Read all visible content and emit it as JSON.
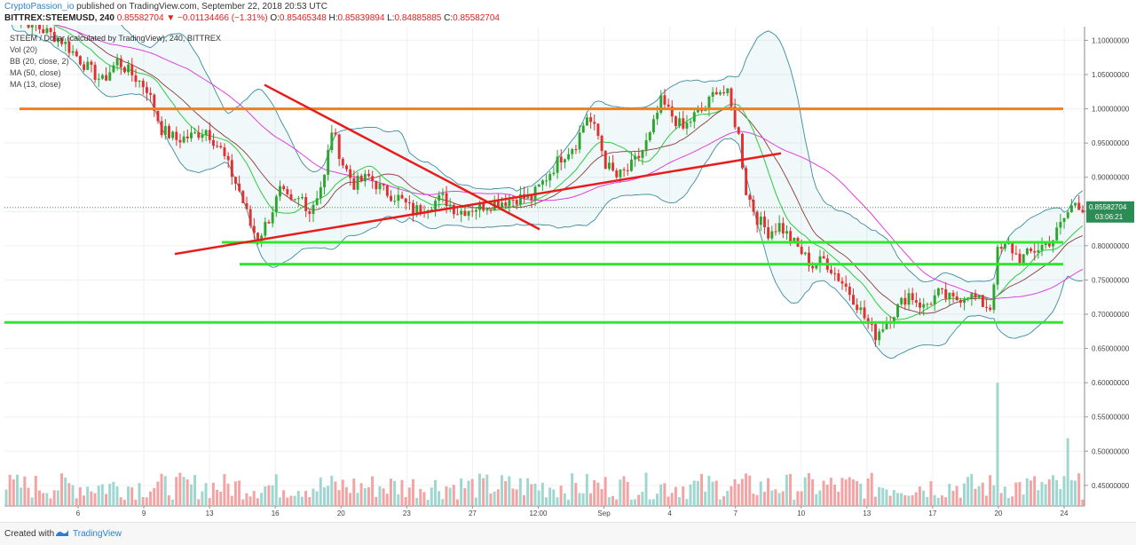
{
  "header": {
    "author": "CryptoPassion_io",
    "published": " published on TradingView.com, September 22, 2018 20:53 UTC",
    "symbol": "BITTREX:STEEMUSD, 240",
    "last": "0.85582704",
    "change": "▼ −0.01134466 (−1.31%)",
    "o_label": "O:",
    "open": "0.85465348",
    "h_label": "H:",
    "high": "0.85839894",
    "l_label": "L:",
    "low": "0.84885885",
    "c_label": "C:",
    "close": "0.85582704"
  },
  "legend": {
    "title": "STEEM / Dollar (calculated by TradingView), 240, BITTREX",
    "vol": "Vol (20)",
    "bb": "BB (20, close, 2)",
    "ma50": "MA (50, close)",
    "ma13": "MA (13, close)"
  },
  "footer": {
    "created": "Created with",
    "brand": "TradingView"
  },
  "colors": {
    "up": "#26a69a",
    "up_candle": "#2fa52f",
    "down": "#e03030",
    "ma13": "#2ecc40",
    "ma50": "#e040e0",
    "ma20": "#8b3a3a",
    "bb": "#3a8ca0",
    "orange_line": "#f07f1e",
    "support_lines": "#2ee82e",
    "trend_lines": "#e81c1c"
  },
  "chart_data": {
    "type": "candlestick",
    "ylim": [
      0.42,
      1.12
    ],
    "grid": true,
    "y_ticks": [
      "1.10000000",
      "1.05000000",
      "1.00000000",
      "0.95000000",
      "0.90000000",
      "0.85000000",
      "0.80000000",
      "0.75000000",
      "0.70000000",
      "0.65000000",
      "0.60000000",
      "0.55000000",
      "0.50000000",
      "0.45000000"
    ],
    "x_ticks": [
      "6",
      "9",
      "13",
      "16",
      "20",
      "23",
      "27",
      "12:00",
      "Sep",
      "4",
      "7",
      "10",
      "13",
      "17",
      "20",
      "24"
    ],
    "price_label": "0.85582704",
    "countdown_label": "03:06:21",
    "close_path": [
      [
        0,
        1.14
      ],
      [
        5,
        1.13
      ],
      [
        15,
        1.1
      ],
      [
        22,
        1.06
      ],
      [
        26,
        1.04
      ],
      [
        30,
        1.07
      ],
      [
        34,
        1.05
      ],
      [
        38,
        1.03
      ],
      [
        42,
        0.97
      ],
      [
        46,
        0.955
      ],
      [
        50,
        0.96
      ],
      [
        54,
        0.97
      ],
      [
        58,
        0.94
      ],
      [
        63,
        0.88
      ],
      [
        66,
        0.83
      ],
      [
        68,
        0.81
      ],
      [
        71,
        0.84
      ],
      [
        74,
        0.88
      ],
      [
        77,
        0.86
      ],
      [
        80,
        0.87
      ],
      [
        82,
        0.85
      ],
      [
        86,
        0.9
      ],
      [
        88,
        0.97
      ],
      [
        91,
        0.92
      ],
      [
        94,
        0.89
      ],
      [
        98,
        0.9
      ],
      [
        102,
        0.88
      ],
      [
        106,
        0.87
      ],
      [
        110,
        0.85
      ],
      [
        114,
        0.86
      ],
      [
        118,
        0.87
      ],
      [
        122,
        0.85
      ],
      [
        126,
        0.855
      ],
      [
        130,
        0.86
      ],
      [
        134,
        0.865
      ],
      [
        138,
        0.87
      ],
      [
        142,
        0.87
      ],
      [
        146,
        0.9
      ],
      [
        150,
        0.93
      ],
      [
        154,
        0.95
      ],
      [
        157,
        0.99
      ],
      [
        160,
        0.96
      ],
      [
        162,
        0.92
      ],
      [
        165,
        0.9
      ],
      [
        168,
        0.91
      ],
      [
        171,
        0.93
      ],
      [
        174,
        0.96
      ],
      [
        177,
        1.01
      ],
      [
        180,
        0.99
      ],
      [
        183,
        0.97
      ],
      [
        186,
        0.99
      ],
      [
        189,
        1.0
      ],
      [
        192,
        1.03
      ],
      [
        195,
        1.02
      ],
      [
        198,
        0.96
      ],
      [
        200,
        0.88
      ],
      [
        203,
        0.84
      ],
      [
        206,
        0.82
      ],
      [
        209,
        0.83
      ],
      [
        212,
        0.81
      ],
      [
        215,
        0.79
      ],
      [
        218,
        0.77
      ],
      [
        221,
        0.78
      ],
      [
        224,
        0.76
      ],
      [
        227,
        0.74
      ],
      [
        230,
        0.715
      ],
      [
        233,
        0.685
      ],
      [
        235,
        0.67
      ],
      [
        238,
        0.69
      ],
      [
        241,
        0.71
      ],
      [
        244,
        0.73
      ],
      [
        248,
        0.71
      ],
      [
        252,
        0.73
      ],
      [
        256,
        0.72
      ],
      [
        260,
        0.73
      ],
      [
        264,
        0.715
      ],
      [
        266,
        0.71
      ],
      [
        268,
        0.79
      ],
      [
        271,
        0.8
      ],
      [
        274,
        0.78
      ],
      [
        277,
        0.79
      ],
      [
        280,
        0.8
      ],
      [
        283,
        0.81
      ],
      [
        286,
        0.84
      ],
      [
        289,
        0.865
      ],
      [
        291,
        0.856
      ]
    ],
    "volume_range": [
      0,
      1.0
    ],
    "volume_spikes": [
      [
        268,
        1.0
      ],
      [
        287,
        0.55
      ]
    ]
  }
}
